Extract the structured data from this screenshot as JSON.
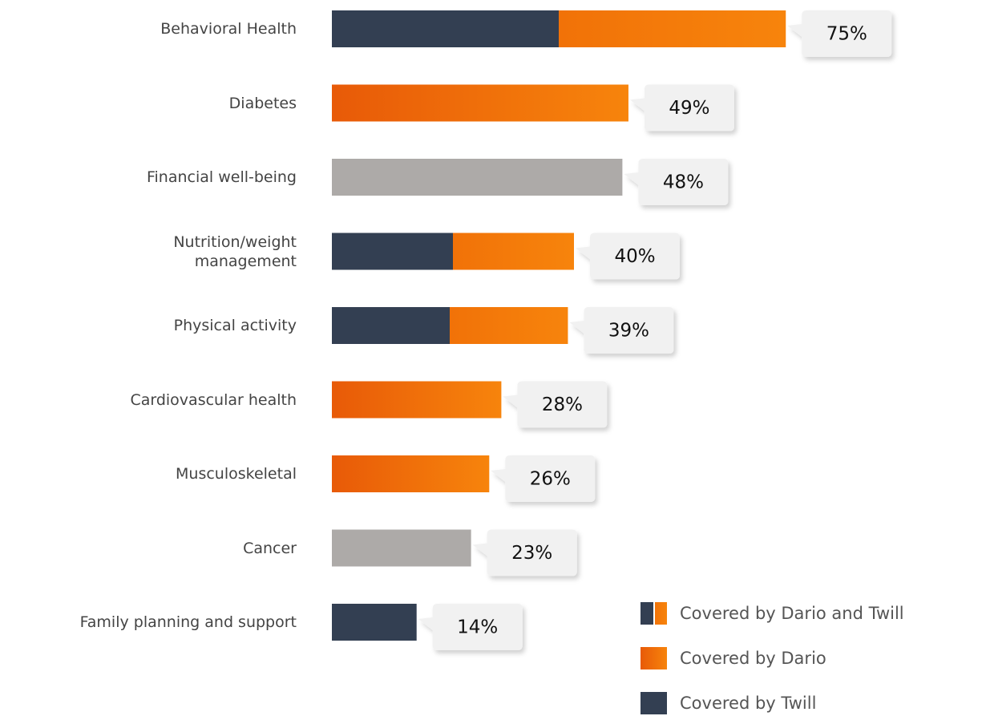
{
  "chart_data": {
    "type": "bar",
    "orientation": "horizontal",
    "categories": [
      "Behavioral Health",
      "Diabetes",
      "Financial well-being",
      "Nutrition/weight\nmanagement",
      "Physical activity",
      "Cardiovascular health",
      "Musculoskeletal",
      "Cancer",
      "Family planning and support"
    ],
    "values": [
      75,
      49,
      48,
      40,
      39,
      28,
      26,
      23,
      14
    ],
    "value_labels": [
      "75%",
      "49%",
      "48%",
      "40%",
      "39%",
      "28%",
      "26%",
      "23%",
      "14%"
    ],
    "bar_styles": [
      "both",
      "dario",
      "none",
      "both",
      "both",
      "dario",
      "dario",
      "none",
      "twill"
    ],
    "palette": {
      "dario": "#f27d0c",
      "twill": "#333f52",
      "none": "#adaaa8"
    },
    "legend": [
      {
        "name": "Covered by Dario and Twill",
        "style": "both"
      },
      {
        "name": "Covered by Dario",
        "style": "dario"
      },
      {
        "name": "Covered by Twill",
        "style": "twill"
      }
    ],
    "xlim": [
      0,
      100
    ]
  }
}
